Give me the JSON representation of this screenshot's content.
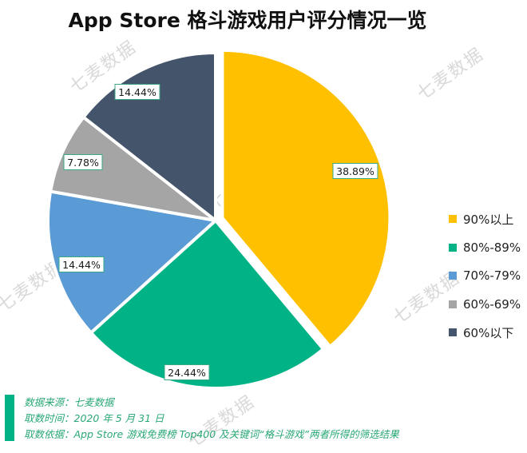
{
  "title": "App Store 格斗游戏用户评分情况一览",
  "watermark_text": "七麦数据",
  "chart_data": {
    "type": "pie",
    "title": "App Store 格斗游戏用户评分情况一览",
    "slices": [
      {
        "label": "90%以上",
        "value": 38.89,
        "display": "38.89%",
        "color": "#ffc000"
      },
      {
        "label": "80%-89%",
        "value": 24.44,
        "display": "24.44%",
        "color": "#00b386"
      },
      {
        "label": "70%-79%",
        "value": 14.44,
        "display": "14.44%",
        "color": "#5b9bd5"
      },
      {
        "label": "60%-69%",
        "value": 7.78,
        "display": "7.78%",
        "color": "#a5a5a5"
      },
      {
        "label": "60%以下",
        "value": 14.44,
        "display": "14.44%",
        "color": "#44546a"
      }
    ],
    "legend_position": "right",
    "start_direction": "12 o'clock, clockwise",
    "exploded_slice": "90%以上"
  },
  "footer": {
    "bar_color": "#00b386",
    "lines": [
      "数据来源：七麦数据",
      "取数时间：2020 年 5 月 31 日",
      "取数依据：App Store 游戏免费榜 Top400 及关键词“格斗游戏”两者所得的筛选结果"
    ]
  }
}
